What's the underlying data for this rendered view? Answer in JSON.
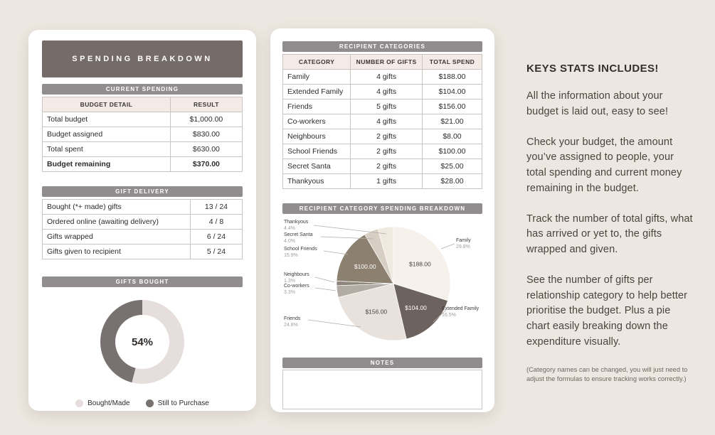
{
  "colors": {
    "page_bg": "#ece7e0",
    "card_bg": "#ffffff",
    "header_dark": "#756b68",
    "section_bar_gray": "#918d8e",
    "subheader_pink": "#f4eae6",
    "table_border": "#c9c4c2",
    "donut_light": "#e5dedc",
    "donut_dark": "#77716f"
  },
  "left_card": {
    "title": "SPENDING BREAKDOWN",
    "current_spending": {
      "section_title": "CURRENT SPENDING",
      "columns": [
        "BUDGET DETAIL",
        "RESULT"
      ],
      "rows": [
        {
          "label": "Total budget",
          "value": "$1,000.00"
        },
        {
          "label": "Budget assigned",
          "value": "$830.00"
        },
        {
          "label": "Total spent",
          "value": "$630.00"
        },
        {
          "label": "Budget remaining",
          "value": "$370.00"
        }
      ]
    },
    "gift_delivery": {
      "section_title": "GIFT DELIVERY",
      "rows": [
        {
          "label": "Bought (*+ made) gifts",
          "value": "13 / 24"
        },
        {
          "label": "Ordered online (awaiting delivery)",
          "value": "4 / 8"
        },
        {
          "label": "Gifts wrapped",
          "value": "6 / 24"
        },
        {
          "label": "Gifts given to recipient",
          "value": "5 / 24"
        }
      ]
    },
    "gifts_bought": {
      "section_title": "GIFTS BOUGHT",
      "center_label": "54%",
      "legend": [
        {
          "label": "Bought/Made",
          "color": "#e5dedc"
        },
        {
          "label": "Still to Purchase",
          "color": "#77716f"
        }
      ]
    }
  },
  "middle_card": {
    "recipient_table": {
      "section_title": "RECIPIENT CATEGORIES",
      "columns": [
        "CATEGORY",
        "NUMBER OF GIFTS",
        "TOTAL SPEND"
      ],
      "rows": [
        {
          "category": "Family",
          "gifts": "4 gifts",
          "spend": "$188.00"
        },
        {
          "category": "Extended Family",
          "gifts": "4 gifts",
          "spend": "$104.00"
        },
        {
          "category": "Friends",
          "gifts": "5 gifts",
          "spend": "$156.00"
        },
        {
          "category": "Co-workers",
          "gifts": "4 gifts",
          "spend": "$21.00"
        },
        {
          "category": "Neighbours",
          "gifts": "2 gifts",
          "spend": "$8.00"
        },
        {
          "category": "School Friends",
          "gifts": "2 gifts",
          "spend": "$100.00"
        },
        {
          "category": "Secret Santa",
          "gifts": "2 gifts",
          "spend": "$25.00"
        },
        {
          "category": "Thankyous",
          "gifts": "1 gifts",
          "spend": "$28.00"
        }
      ]
    },
    "pie_section_title": "RECIPIENT CATEGORY SPENDING BREAKDOWN",
    "notes_title": "NOTES"
  },
  "right_panel": {
    "heading": "KEYS STATS INCLUDES!",
    "paragraphs": [
      "All the information about your budget is laid out, easy to see!",
      "Check your budget, the amount you’ve assigned to people, your total spending and current money remaining in the budget.",
      "Track the number of total gifts, what has arrived or yet to, the gifts wrapped and given.",
      "See the number of gifts per relationship category to help better prioritise the budget. Plus a pie chart easily breaking down the expenditure visually."
    ],
    "footnote": "(Category names can be changed, you will just need to adjust the formulas to ensure tracking works correctly.)"
  },
  "chart_data": [
    {
      "type": "pie",
      "style": "donut",
      "title": "GIFTS BOUGHT",
      "labels": [
        "Bought/Made",
        "Still to Purchase"
      ],
      "values": [
        54,
        46
      ],
      "colors": [
        "#e5dedc",
        "#77716f"
      ],
      "center_label": "54%",
      "legend_position": "bottom"
    },
    {
      "type": "pie",
      "title": "RECIPIENT CATEGORY SPENDING BREAKDOWN",
      "total": 630,
      "slices": [
        {
          "name": "Family",
          "value": 188,
          "percent_label": "29.8%",
          "color": "#f6f1ea",
          "amount_inside": "$188.00",
          "amount_color": "#4a4440"
        },
        {
          "name": "Extended Family",
          "value": 104,
          "percent_label": "16.5%",
          "color": "#6d635e",
          "amount_inside": "$104.00",
          "amount_color": "#ffffff"
        },
        {
          "name": "Friends",
          "value": 156,
          "percent_label": "24.8%",
          "color": "#e9e1dc",
          "amount_inside": "$156.00",
          "amount_color": "#4a4440"
        },
        {
          "name": "Co-workers",
          "value": 21,
          "percent_label": "3.3%",
          "color": "#b3aca5"
        },
        {
          "name": "Neighbours",
          "value": 8,
          "percent_label": "1.3%",
          "color": "#8d847c"
        },
        {
          "name": "School Friends",
          "value": 100,
          "percent_label": "15.9%",
          "color": "#8c8170",
          "amount_inside": "$100.00",
          "amount_color": "#ffffff"
        },
        {
          "name": "Secret Santa",
          "value": 25,
          "percent_label": "4.0%",
          "color": "#d7cfc3"
        },
        {
          "name": "Thankyous",
          "value": 28,
          "percent_label": "4.4%",
          "color": "#efe9df"
        }
      ]
    }
  ]
}
